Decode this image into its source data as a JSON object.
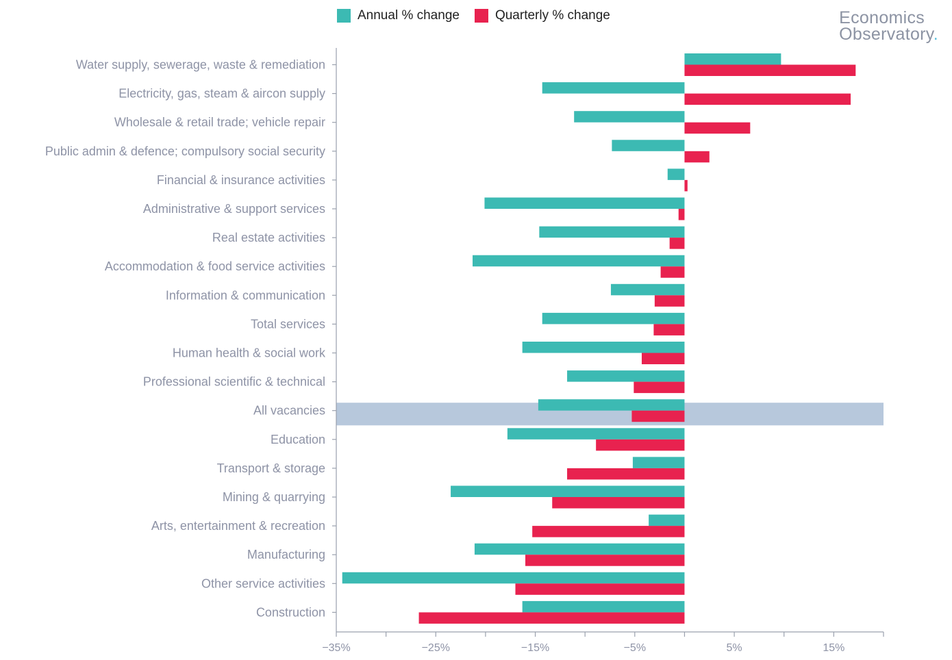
{
  "legend": {
    "annual_label": "Annual % change",
    "quarterly_label": "Quarterly % change"
  },
  "brand": {
    "line1": "Economics",
    "line2": "Observatory",
    "dot": "."
  },
  "colors": {
    "annual": "#3cbab3",
    "quarterly": "#e8224f",
    "highlight": "#b7c8dc",
    "axis": "#9aa0ad",
    "text": "#8e93a6"
  },
  "chart_data": {
    "type": "bar",
    "orientation": "horizontal",
    "xlim": [
      -35,
      20
    ],
    "x_ticks": [
      -35,
      -30,
      -25,
      -20,
      -15,
      -10,
      -5,
      0,
      5,
      10,
      15,
      20
    ],
    "x_tick_labels": [
      "−35%",
      "",
      "−25%",
      "",
      "−15%",
      "",
      "−5%",
      "",
      "5%",
      "",
      "15%",
      ""
    ],
    "highlight_category": "All vacancies",
    "categories": [
      "Water supply, sewerage, waste & remediation",
      "Electricity, gas, steam & aircon supply",
      "Wholesale & retail trade; vehicle repair",
      "Public admin & defence; compulsory social security",
      "Financial & insurance activities",
      "Administrative & support services",
      "Real estate activities",
      "Accommodation & food service activities",
      "Information & communication",
      "Total services",
      "Human health & social work",
      "Professional scientific & technical",
      "All vacancies",
      "Education",
      "Transport & storage",
      "Mining & quarrying",
      "Arts, entertainment & recreation",
      "Manufacturing",
      "Other service activities",
      "Construction"
    ],
    "series": [
      {
        "name": "Annual % change",
        "values": [
          9.7,
          -14.3,
          -11.1,
          -7.3,
          -1.7,
          -20.1,
          -14.6,
          -21.3,
          -7.4,
          -14.3,
          -16.3,
          -11.8,
          -14.7,
          -17.8,
          -5.2,
          -23.5,
          -3.6,
          -21.1,
          -34.4,
          -16.3
        ]
      },
      {
        "name": "Quarterly % change",
        "values": [
          17.2,
          16.7,
          6.6,
          2.5,
          0.3,
          -0.6,
          -1.5,
          -2.4,
          -3.0,
          -3.1,
          -4.3,
          -5.1,
          -5.3,
          -8.9,
          -11.8,
          -13.3,
          -15.3,
          -16.0,
          -17.0,
          -26.7
        ]
      }
    ]
  }
}
